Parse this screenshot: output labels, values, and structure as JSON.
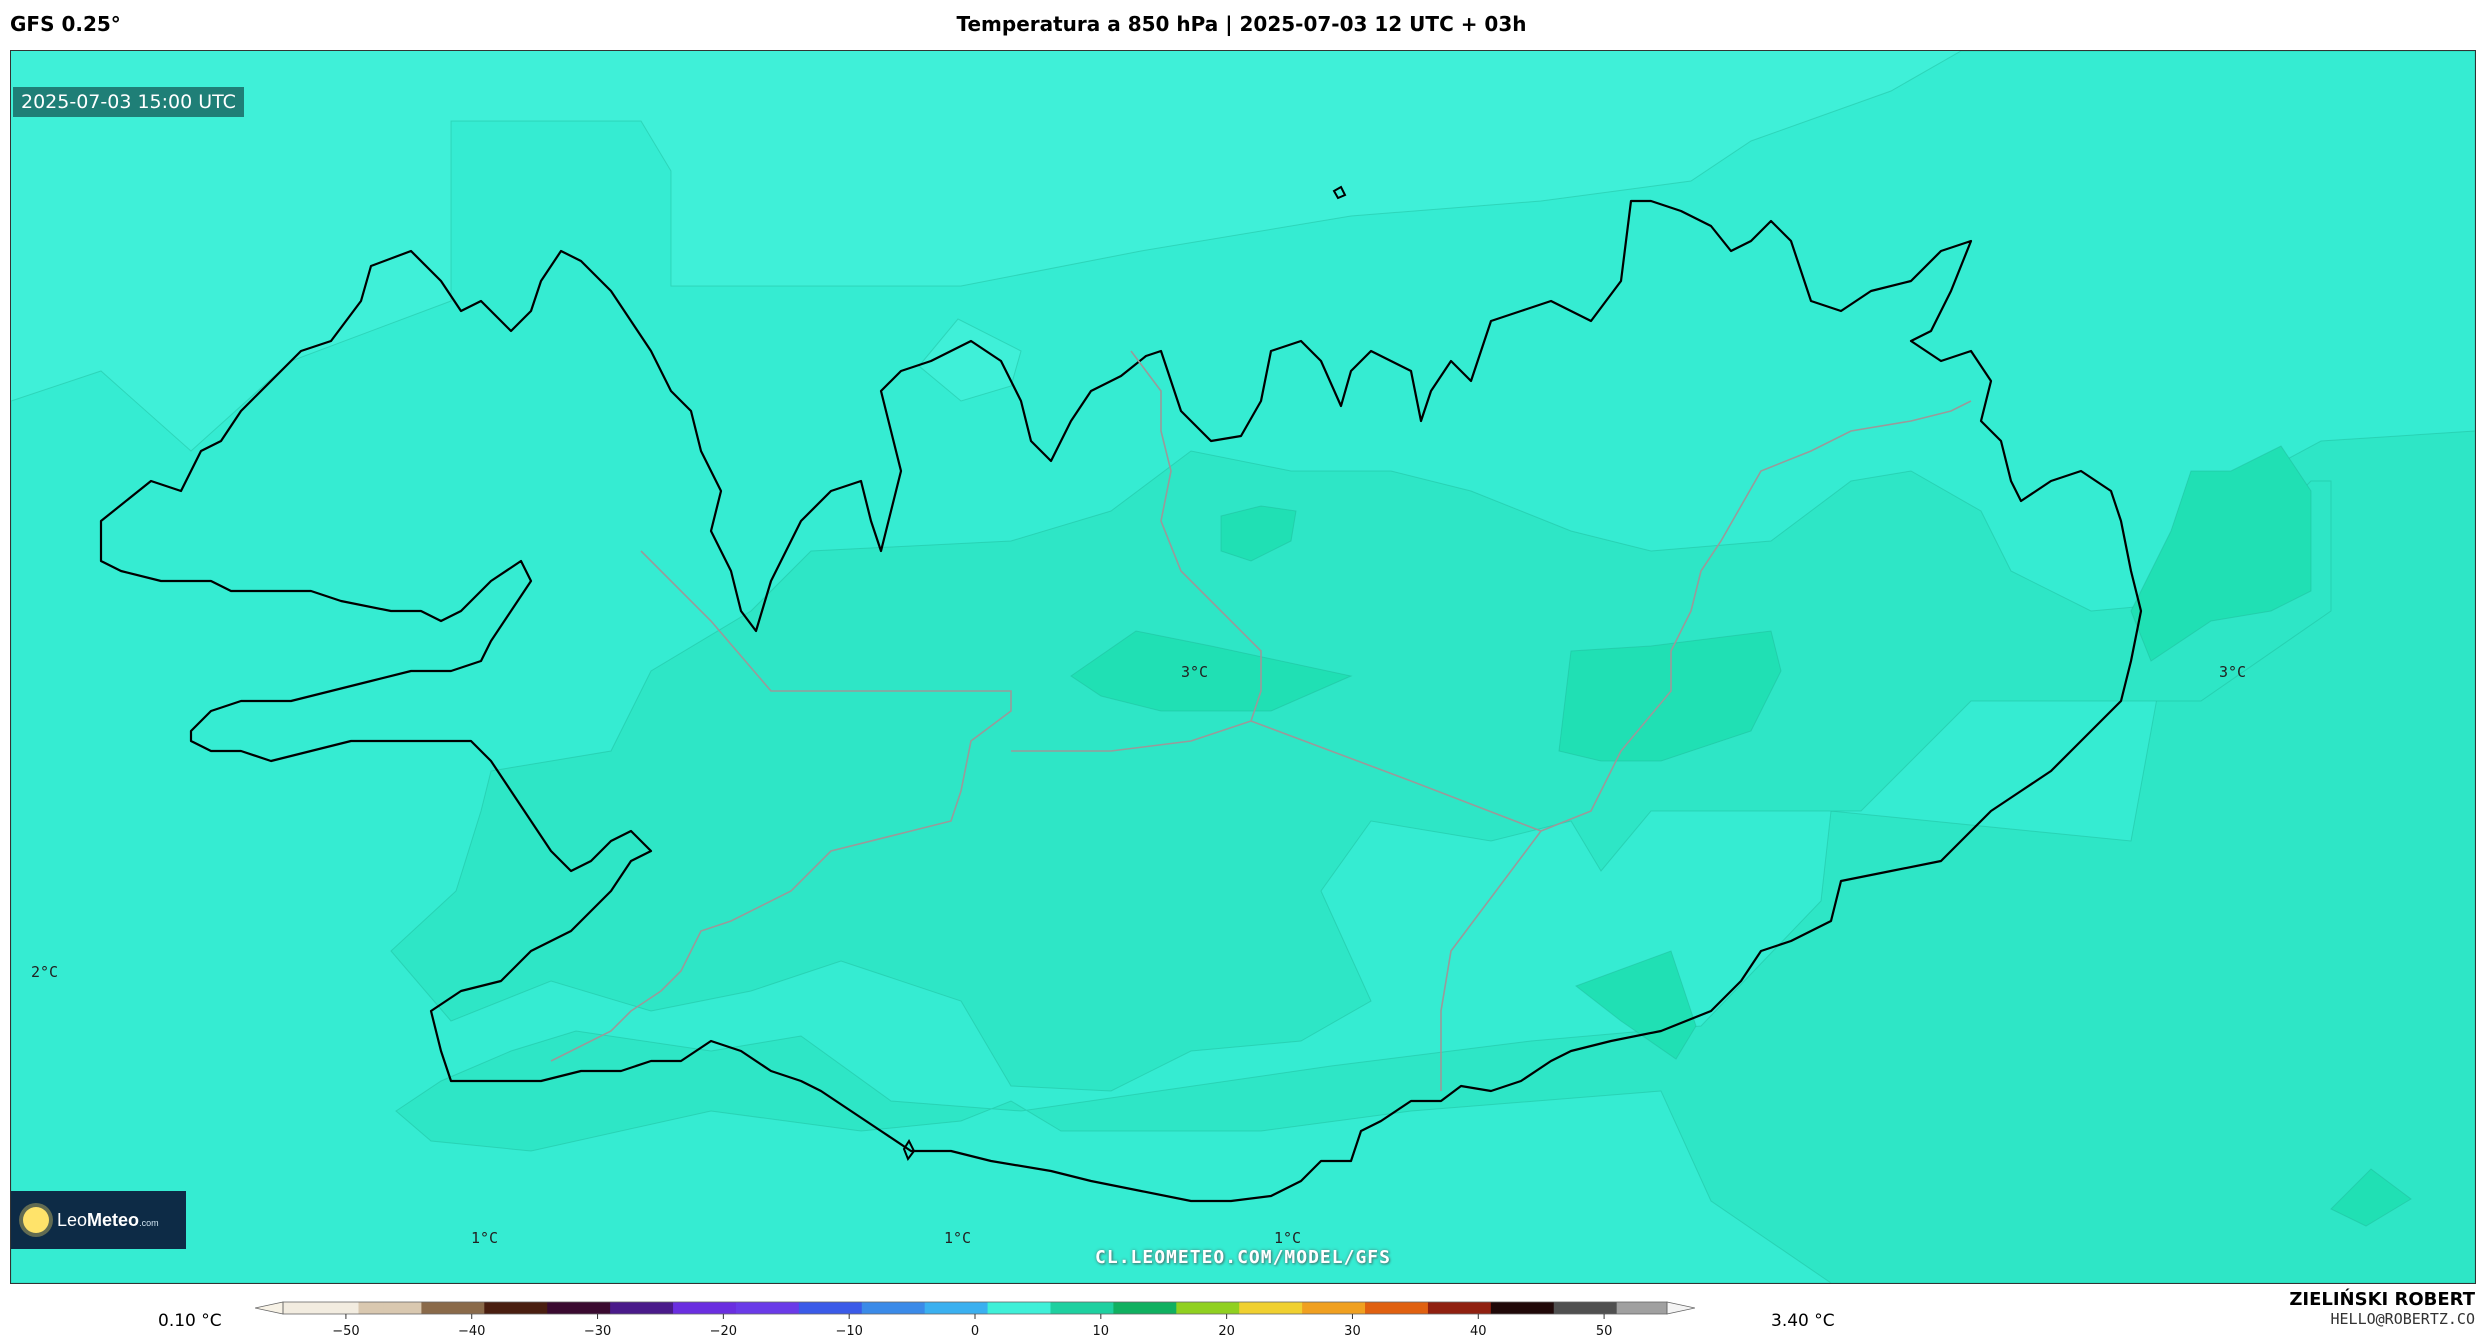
{
  "header": {
    "model": "GFS 0.25°",
    "title": "Temperatura a 850 hPa | 2025-07-03 12 UTC + 03h"
  },
  "map": {
    "timestamp": "2025-07-03 15:00 UTC",
    "temperature_labels": [
      {
        "id": "label-center",
        "text": "3°C"
      },
      {
        "id": "label-east",
        "text": "3°C"
      },
      {
        "id": "label-west",
        "text": "2°C"
      },
      {
        "id": "label-south-1",
        "text": "1°C"
      },
      {
        "id": "label-south-2",
        "text": "1°C"
      },
      {
        "id": "label-south-3",
        "text": "1°C"
      }
    ],
    "watermark": "CL.LEOMETEO.COM/MODEL/GFS",
    "logo": {
      "text_light": "Leo",
      "text_bold": "Meteo",
      "suffix": ".com"
    },
    "colors": {
      "base": "#3ff0d8",
      "level_1": "#35ecd2",
      "level_2": "#2ee6c6",
      "level_3": "#20e0b4"
    }
  },
  "colorbar": {
    "min_label": "0.10 °C",
    "max_label": "3.40 °C",
    "ticks": [
      "−50",
      "−40",
      "−30",
      "−20",
      "−10",
      "0",
      "10",
      "20",
      "30",
      "40",
      "50"
    ],
    "range": [
      -55,
      55
    ]
  },
  "author": {
    "name": "ZIELIŃSKI ROBERT",
    "email": "HELLO@ROBERTZ.CO"
  }
}
